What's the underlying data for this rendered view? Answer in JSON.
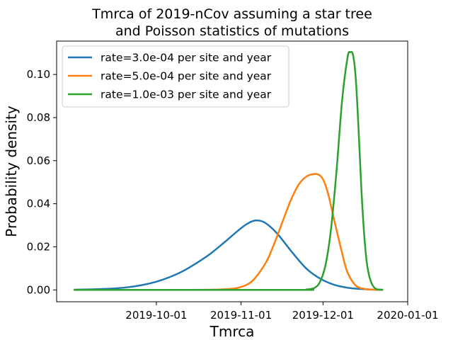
{
  "chart_data": {
    "type": "line",
    "title": [
      "Tmrca of 2019-nCov assuming a star tree",
      "and Poisson statistics of mutations"
    ],
    "xlabel": "Tmrca",
    "ylabel": "Probability density",
    "x_axis": {
      "unit": "days since 2019-09-01",
      "range": [
        -6.5,
        122
      ],
      "ticks": [
        {
          "value": 30,
          "label": "2019-10-01"
        },
        {
          "value": 61,
          "label": "2019-11-01"
        },
        {
          "value": 91,
          "label": "2019-12-01"
        },
        {
          "value": 122,
          "label": "2020-01-01"
        }
      ]
    },
    "y_axis": {
      "range": [
        -0.0055,
        0.1155
      ],
      "ticks": [
        {
          "value": 0.0,
          "label": "0.00"
        },
        {
          "value": 0.02,
          "label": "0.02"
        },
        {
          "value": 0.04,
          "label": "0.04"
        },
        {
          "value": 0.06,
          "label": "0.06"
        },
        {
          "value": 0.08,
          "label": "0.08"
        },
        {
          "value": 0.1,
          "label": "0.10"
        }
      ]
    },
    "legend_position": "top-left",
    "series": [
      {
        "name": "rate=3.0e-04 per site and year",
        "color": "#1f77b4",
        "x": [
          -0.2,
          5,
          10,
          15,
          20,
          25,
          30,
          35,
          40,
          45,
          50,
          55,
          60,
          63,
          66,
          69,
          72,
          75,
          80,
          85,
          90,
          95,
          100,
          105,
          110,
          113
        ],
        "y": [
          0.0001,
          0.0002,
          0.0004,
          0.0007,
          0.0013,
          0.0023,
          0.0038,
          0.006,
          0.0089,
          0.0127,
          0.017,
          0.0222,
          0.0276,
          0.0305,
          0.0322,
          0.0317,
          0.029,
          0.025,
          0.017,
          0.0098,
          0.0052,
          0.0024,
          0.001,
          0.0004,
          0.0001,
          0.0001
        ]
      },
      {
        "name": "rate=5.0e-04 per site and year",
        "color": "#ff7f0e",
        "x": [
          -0.2,
          40,
          50,
          55,
          60,
          65,
          70,
          73,
          76,
          79,
          82,
          85,
          88,
          90,
          91.5,
          93,
          95,
          98,
          100,
          103,
          106,
          108,
          110,
          113
        ],
        "y": [
          0.0,
          0.0,
          0.0001,
          0.0003,
          0.001,
          0.004,
          0.0125,
          0.021,
          0.031,
          0.041,
          0.0487,
          0.0527,
          0.0538,
          0.053,
          0.05,
          0.044,
          0.033,
          0.017,
          0.008,
          0.002,
          0.0005,
          0.0002,
          0.0001,
          0.0
        ]
      },
      {
        "name": "rate=1.0e-03 per site and year",
        "color": "#2ca02c",
        "x": [
          -0.2,
          80,
          85,
          88,
          90,
          92,
          94,
          96,
          98,
          100,
          101,
          102,
          103,
          104,
          105,
          106,
          107,
          108,
          109,
          110,
          111,
          112,
          113
        ],
        "y": [
          0.0,
          0.0,
          0.0002,
          0.001,
          0.004,
          0.012,
          0.029,
          0.056,
          0.088,
          0.108,
          0.1103,
          0.109,
          0.098,
          0.075,
          0.048,
          0.027,
          0.013,
          0.006,
          0.0025,
          0.0008,
          0.0002,
          0.0001,
          0.0
        ]
      }
    ]
  }
}
